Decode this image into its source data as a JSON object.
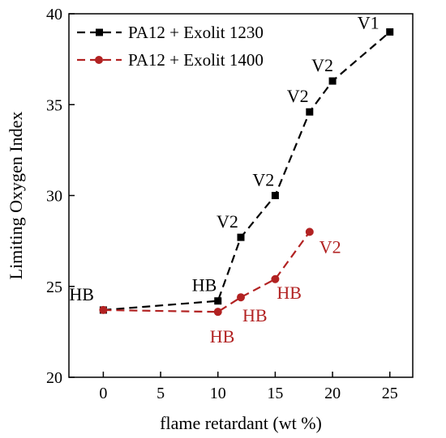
{
  "chart_data": {
    "type": "line",
    "title": "",
    "xlabel": "flame retardant (wt %)",
    "ylabel": "Limiting Oxygen Index",
    "xlim": [
      -3,
      27
    ],
    "ylim": [
      20,
      40
    ],
    "xticks": [
      0,
      5,
      10,
      15,
      20,
      25
    ],
    "yticks": [
      20,
      25,
      30,
      35,
      40
    ],
    "xtick_labels": [
      "0",
      "5",
      "10",
      "15",
      "20",
      "25"
    ],
    "ytick_labels": [
      "20",
      "25",
      "30",
      "35",
      "40"
    ],
    "grid": false,
    "legend_position": "top-left",
    "series": [
      {
        "name": "PA12 + Exolit 1230",
        "color": "#000000",
        "marker": "square",
        "line_style": "dashed",
        "x": [
          0,
          10,
          12,
          15,
          18,
          20,
          25
        ],
        "y": [
          23.7,
          24.2,
          27.7,
          30.0,
          34.6,
          36.3,
          39.0
        ],
        "labels": [
          "HB",
          "HB",
          "V2",
          "V2",
          "V2",
          "V2",
          "V1"
        ]
      },
      {
        "name": "PA12 + Exolit 1400",
        "color": "#b22222",
        "marker": "circle",
        "line_style": "dashed",
        "x": [
          0,
          10,
          12,
          15,
          18
        ],
        "y": [
          23.7,
          23.6,
          24.4,
          25.4,
          28.0
        ],
        "labels": [
          "",
          "HB",
          "HB",
          "HB",
          "V2"
        ]
      }
    ]
  }
}
